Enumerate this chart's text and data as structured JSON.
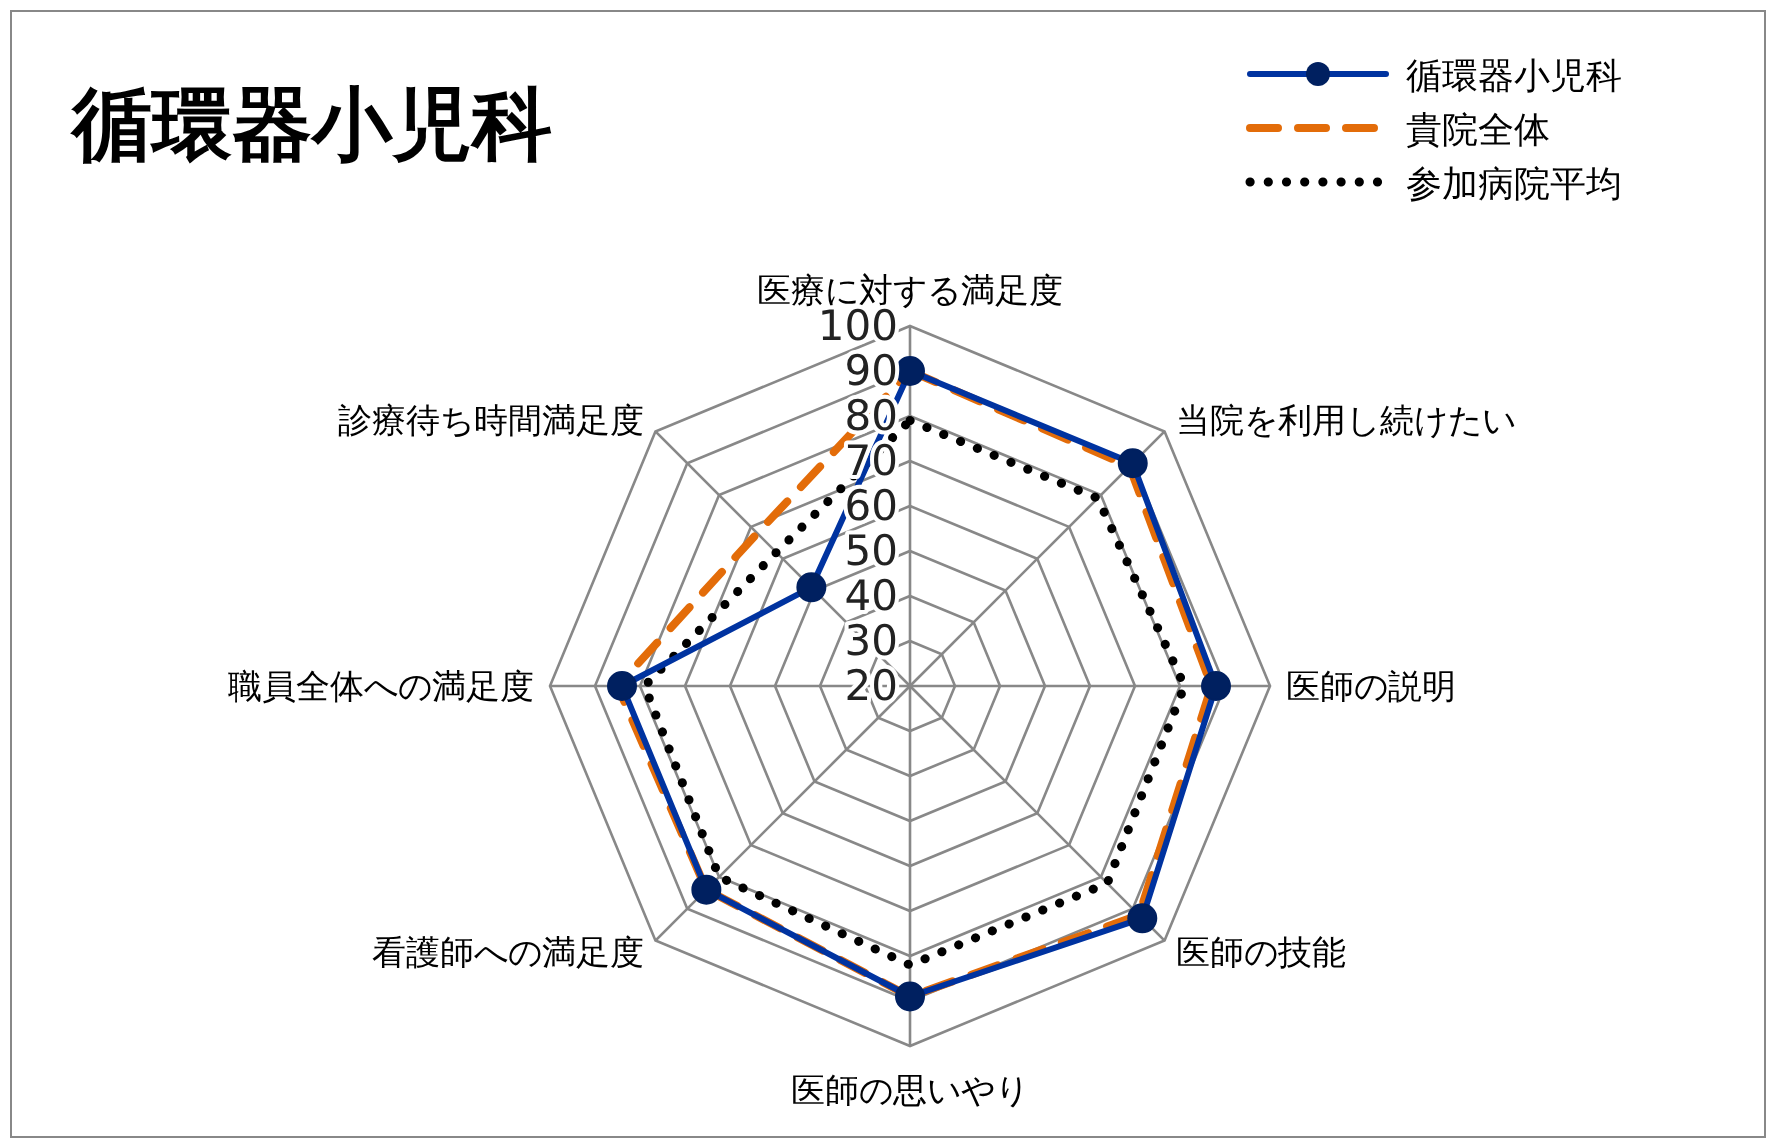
{
  "chart_data": {
    "type": "radar",
    "title": "循環器小児科",
    "categories": [
      "医療に対する満足度",
      "当院を利用し続けたい",
      "医師の説明",
      "医師の技能",
      "医師の思いやり",
      "看護師への満足度",
      "職員全体への満足度",
      "診療待ち時間満足度"
    ],
    "series": [
      {
        "name": "循環器小児科",
        "color": "#0033a0",
        "values": [
          90,
          90,
          88,
          93,
          89,
          84,
          84,
          51
        ],
        "line_style": "solid",
        "marker": "circle"
      },
      {
        "name": "貴院全体",
        "color": "#e36c09",
        "values": [
          90,
          89,
          87,
          92,
          89,
          84,
          85,
          68
        ],
        "line_style": "dashed",
        "marker": "none"
      },
      {
        "name": "参加病院平均",
        "color": "#000000",
        "values": [
          79,
          79,
          81,
          82,
          82,
          80,
          79,
          62
        ],
        "line_style": "dotted",
        "marker": "none"
      }
    ],
    "ylim": [
      20,
      100
    ],
    "yticks": [
      20,
      30,
      40,
      50,
      60,
      70,
      80,
      90,
      100
    ],
    "grid": true,
    "legend": "top right"
  }
}
